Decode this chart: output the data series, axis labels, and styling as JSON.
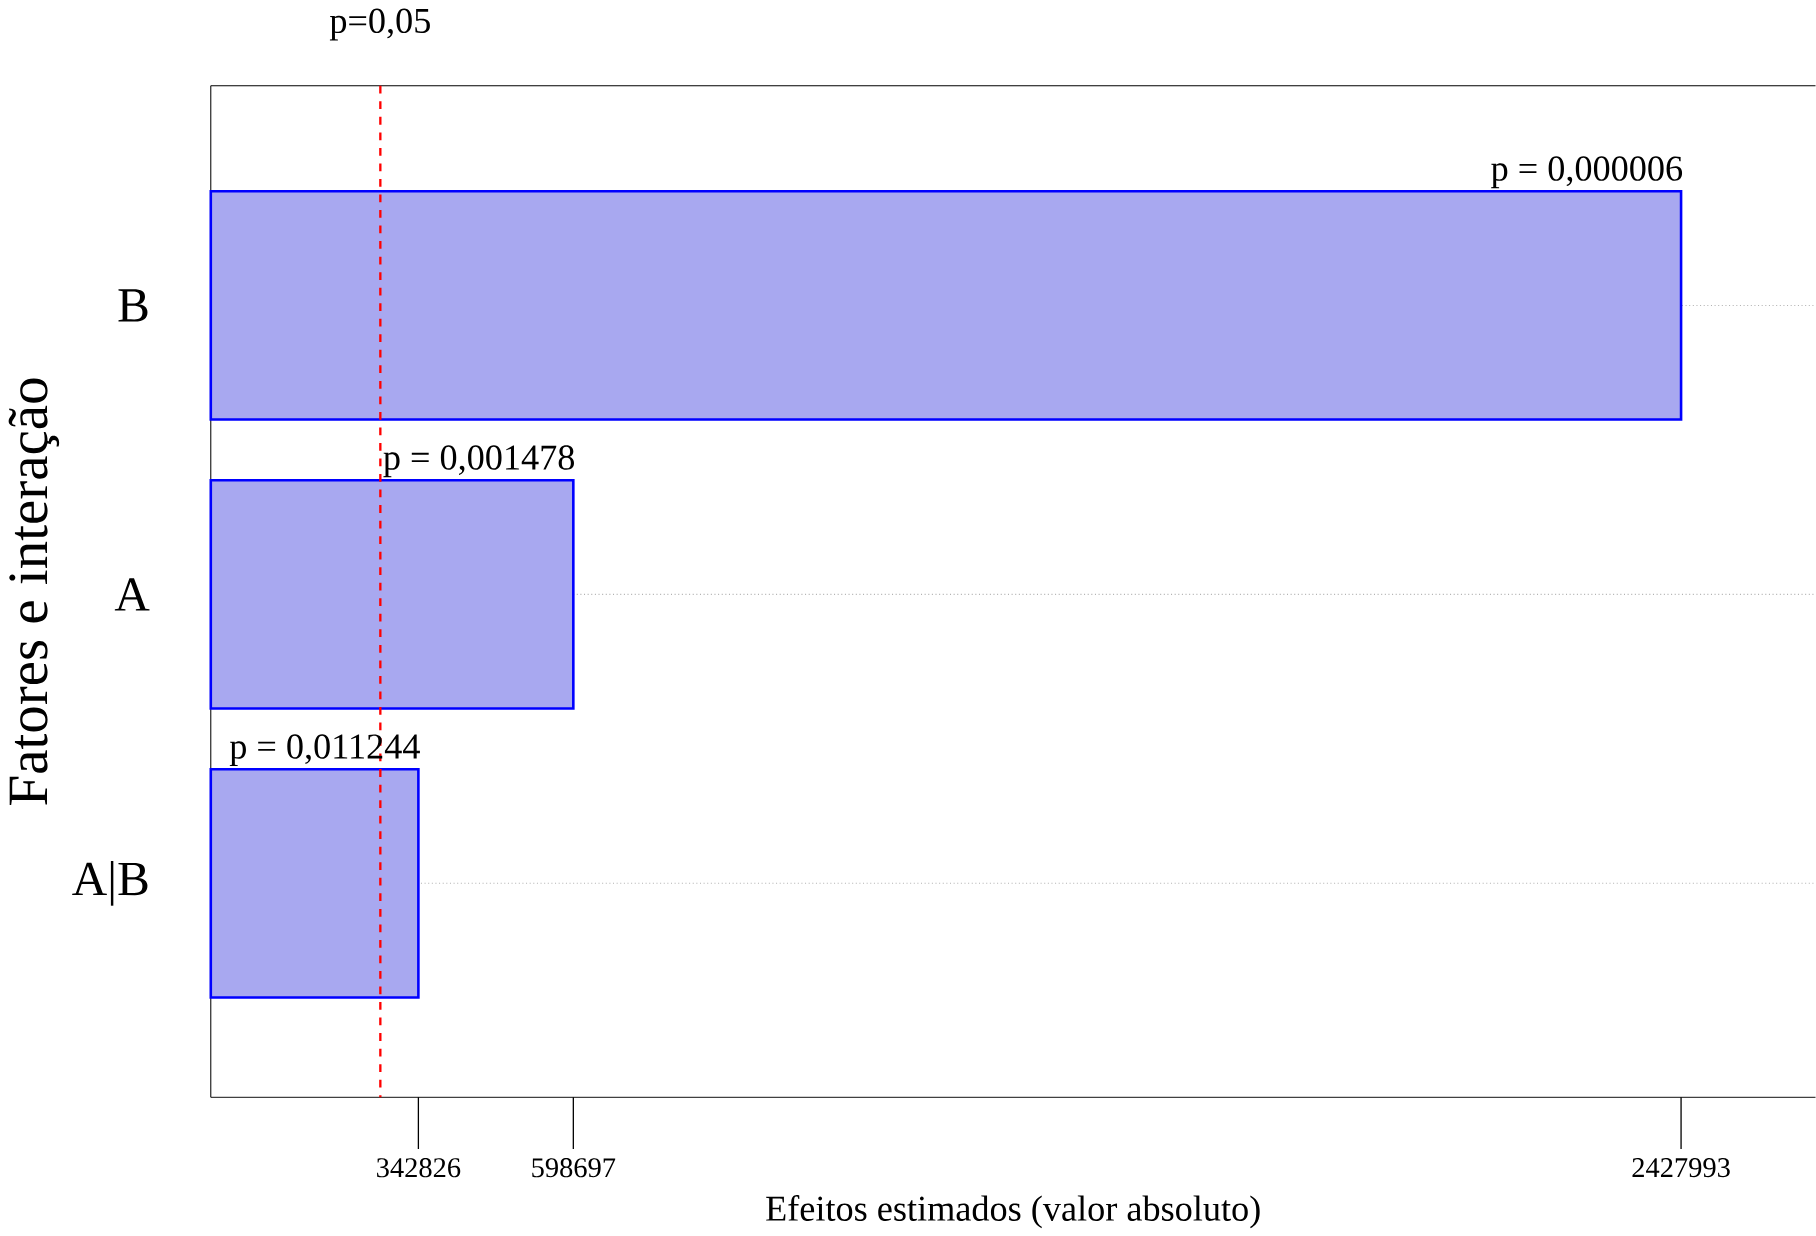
{
  "chart_data": {
    "type": "bar",
    "orientation": "horizontal",
    "categories": [
      "B",
      "A",
      "A|B"
    ],
    "values": [
      2427993,
      598697,
      342826
    ],
    "color": "#a8a8f0",
    "xlim": [
      0,
      2650000
    ],
    "xticks": [
      342826,
      598697,
      2427993
    ],
    "xlabel": "Efeitos estimados (valor absoluto)",
    "ylabel": "Fatores e interação",
    "grid": "y",
    "ref_lines": [
      {
        "axis": "x",
        "value": 280000,
        "color": "#ff0000",
        "line_style": "dashed"
      }
    ],
    "annotations": [
      "p = 0,000006",
      "p = 0,001478",
      "p = 0,011244",
      "p=0,05"
    ]
  }
}
